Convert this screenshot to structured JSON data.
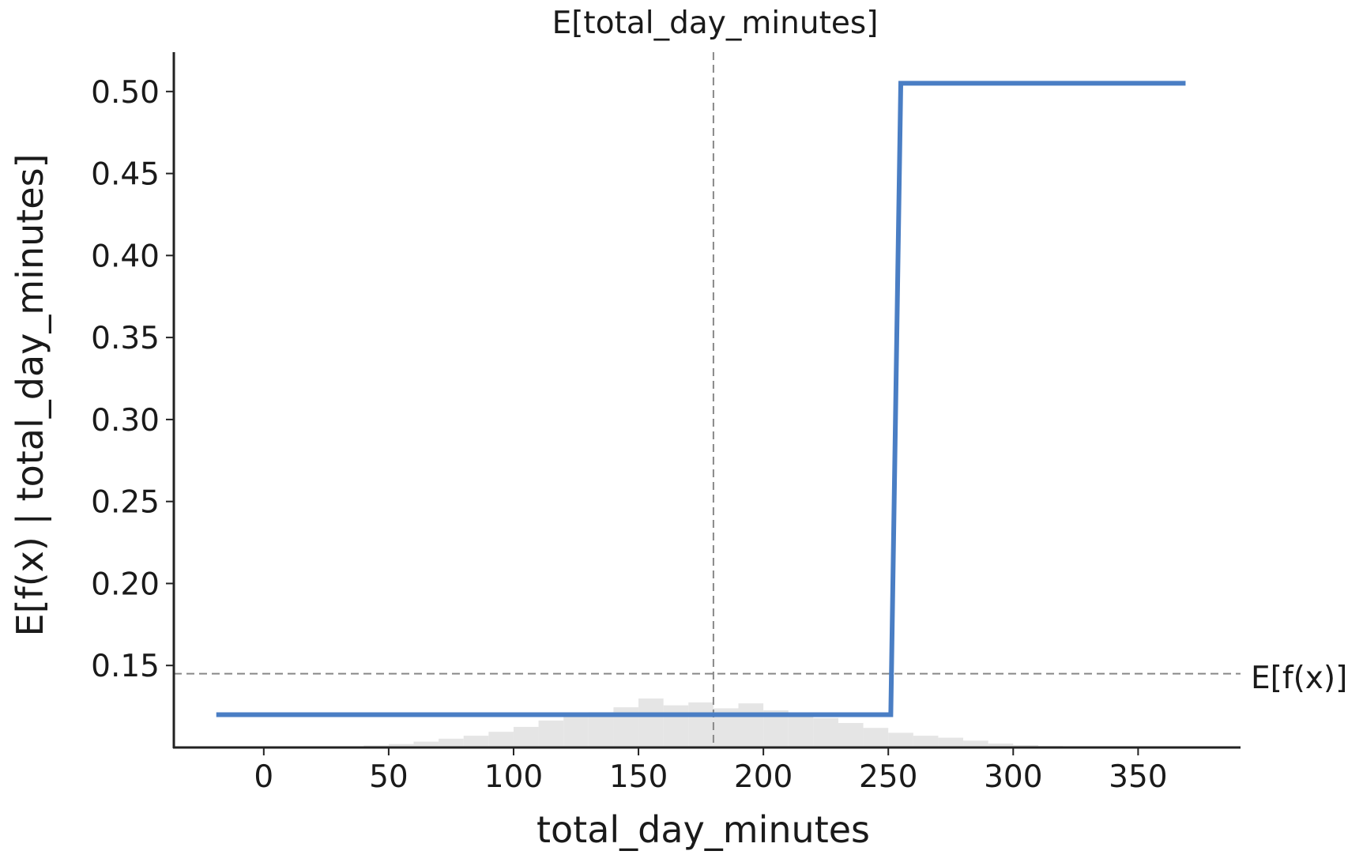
{
  "chart_data": {
    "type": "line",
    "title": "",
    "xlabel": "total_day_minutes",
    "ylabel": "E[f(x) | total_day_minutes]",
    "xlim": [
      -36,
      391
    ],
    "ylim": [
      0.1,
      0.524
    ],
    "xticks": [
      0,
      50,
      100,
      150,
      200,
      250,
      300,
      350
    ],
    "xtick_labels": [
      "0",
      "50",
      "100",
      "150",
      "200",
      "250",
      "300",
      "350"
    ],
    "yticks": [
      0.15,
      0.2,
      0.25,
      0.3,
      0.35,
      0.4,
      0.45,
      0.5
    ],
    "ytick_labels": [
      "0.15",
      "0.20",
      "0.25",
      "0.30",
      "0.35",
      "0.40",
      "0.45",
      "0.50"
    ],
    "grid": false,
    "series": [
      {
        "color": "#4a7ec4",
        "x": [
          -19,
          251,
          255,
          369
        ],
        "y": [
          0.12,
          0.12,
          0.505,
          0.505
        ]
      }
    ],
    "expected_value_line": {
      "label": "E[f(x)]",
      "y": 0.145
    },
    "expected_feature_line": {
      "label": "E[total_day_minutes]",
      "x": 180
    },
    "histogram": {
      "color": "#e5e5e5",
      "bin_centers": [
        45,
        55,
        65,
        75,
        85,
        95,
        105,
        115,
        125,
        135,
        145,
        155,
        165,
        175,
        185,
        195,
        205,
        215,
        225,
        235,
        245,
        255,
        265,
        275,
        285,
        295,
        305,
        315
      ],
      "relative_heights": [
        0.04,
        0.07,
        0.12,
        0.18,
        0.24,
        0.32,
        0.42,
        0.55,
        0.66,
        0.72,
        0.82,
        1.0,
        0.86,
        0.92,
        0.8,
        0.9,
        0.76,
        0.66,
        0.6,
        0.5,
        0.4,
        0.3,
        0.24,
        0.2,
        0.14,
        0.08,
        0.05,
        0.03
      ]
    }
  }
}
